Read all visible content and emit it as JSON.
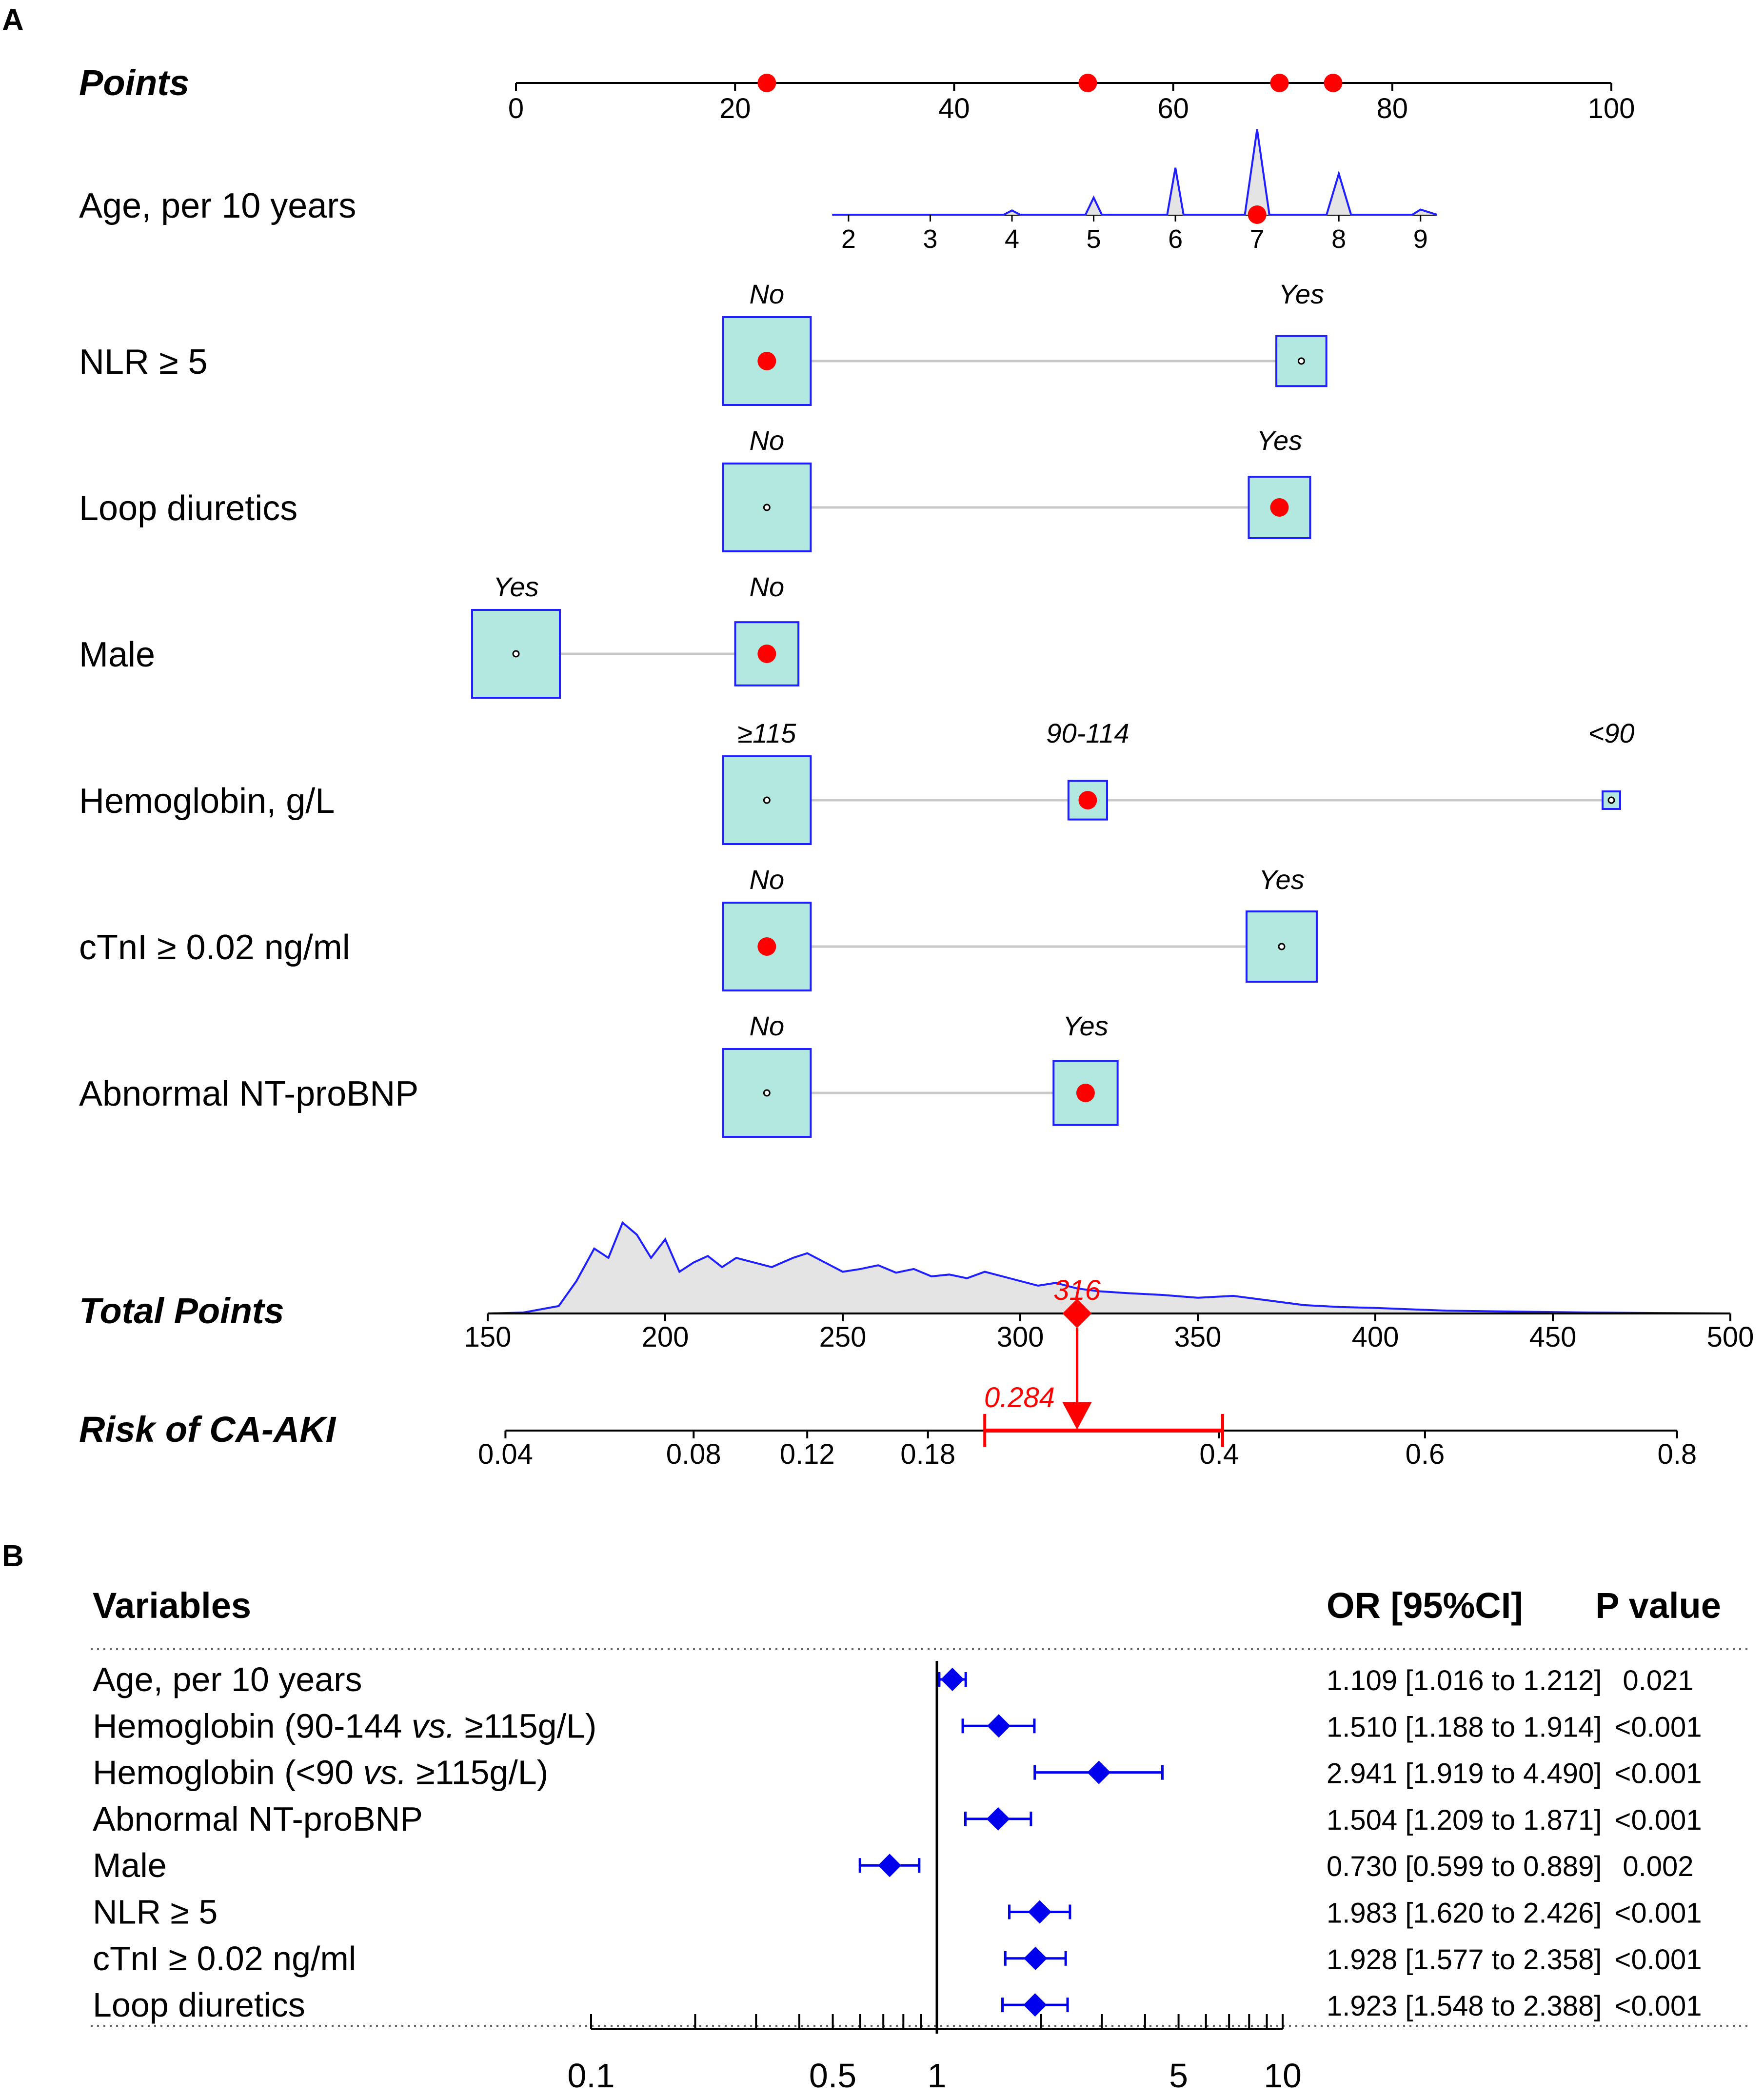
{
  "colors": {
    "axis": "#000000",
    "marker_red": "#ff0000",
    "box_fill": "#b3e8e0",
    "box_stroke": "#1f1fff",
    "density_line": "#1f1fff",
    "density_fill": "#e4e4e4",
    "connector": "#c8c8c8",
    "forest_blue": "#0000ee",
    "grid_dots": "#666666"
  },
  "chart_data": [
    {
      "panel": "A",
      "type": "nomogram",
      "points_axis": {
        "label": "Points",
        "range": [
          0,
          100
        ],
        "ticks": [
          0,
          20,
          40,
          60,
          80,
          100
        ],
        "selected_points": [
          22.9,
          52.2,
          69.7,
          74.6
        ]
      },
      "variables": [
        {
          "label": "Age, per 10 years",
          "kind": "continuous",
          "tick_values": [
            2,
            3,
            4,
            5,
            6,
            7,
            8,
            9
          ],
          "points_per_unit": 7.46,
          "zero_point_value": 1,
          "selected_value": 7,
          "density": [
            [
              1.8,
              0
            ],
            [
              3.9,
              0
            ],
            [
              4.0,
              0.05
            ],
            [
              4.1,
              0
            ],
            [
              4.9,
              0
            ],
            [
              5.0,
              0.2
            ],
            [
              5.1,
              0
            ],
            [
              5.9,
              0
            ],
            [
              6.0,
              0.55
            ],
            [
              6.1,
              0
            ],
            [
              6.85,
              0
            ],
            [
              7.0,
              1.0
            ],
            [
              7.15,
              0
            ],
            [
              7.85,
              0
            ],
            [
              8.0,
              0.48
            ],
            [
              8.15,
              0
            ],
            [
              8.9,
              0
            ],
            [
              9.0,
              0.06
            ],
            [
              9.2,
              0
            ]
          ]
        },
        {
          "label": "NLR ≥ 5",
          "kind": "categorical",
          "categories": [
            {
              "name": "No",
              "points": 22.9,
              "size": 1.0
            },
            {
              "name": "Yes",
              "points": 71.7,
              "size": 0.57
            }
          ],
          "selected": "No"
        },
        {
          "label": "Loop diuretics",
          "kind": "categorical",
          "categories": [
            {
              "name": "No",
              "points": 22.9,
              "size": 1.0
            },
            {
              "name": "Yes",
              "points": 69.7,
              "size": 0.7
            }
          ],
          "selected": "Yes"
        },
        {
          "label": "Male",
          "kind": "categorical",
          "categories": [
            {
              "name": "Yes",
              "points": 0,
              "size": 1.0
            },
            {
              "name": "No",
              "points": 22.9,
              "size": 0.72
            }
          ],
          "selected": "No"
        },
        {
          "label": "Hemoglobin, g/L",
          "kind": "categorical",
          "categories": [
            {
              "name": "≥115",
              "points": 22.9,
              "size": 1.0
            },
            {
              "name": "90-114",
              "points": 52.2,
              "size": 0.44
            },
            {
              "name": "<90",
              "points": 100,
              "size": 0.2
            }
          ],
          "selected": "90-114"
        },
        {
          "label": "cTnI ≥ 0.02 ng/ml",
          "kind": "categorical",
          "categories": [
            {
              "name": "No",
              "points": 22.9,
              "size": 1.0
            },
            {
              "name": "Yes",
              "points": 69.9,
              "size": 0.8
            }
          ],
          "selected": "No"
        },
        {
          "label": "Abnormal NT-proBNP",
          "kind": "categorical",
          "categories": [
            {
              "name": "No",
              "points": 22.9,
              "size": 1.0
            },
            {
              "name": "Yes",
              "points": 52.0,
              "size": 0.73
            }
          ],
          "selected": "Yes"
        }
      ],
      "total_points": {
        "label": "Total Points",
        "range": [
          150,
          500
        ],
        "ticks": [
          150,
          200,
          250,
          300,
          350,
          400,
          450,
          500
        ],
        "selected": 316,
        "selected_label": "316",
        "density": [
          [
            150,
            0
          ],
          [
            160,
            0.01
          ],
          [
            170,
            0.08
          ],
          [
            175,
            0.35
          ],
          [
            180,
            0.7
          ],
          [
            184,
            0.6
          ],
          [
            188,
            0.98
          ],
          [
            192,
            0.85
          ],
          [
            196,
            0.6
          ],
          [
            200,
            0.8
          ],
          [
            204,
            0.45
          ],
          [
            208,
            0.55
          ],
          [
            212,
            0.62
          ],
          [
            216,
            0.5
          ],
          [
            220,
            0.6
          ],
          [
            225,
            0.55
          ],
          [
            230,
            0.5
          ],
          [
            236,
            0.6
          ],
          [
            240,
            0.65
          ],
          [
            245,
            0.55
          ],
          [
            250,
            0.45
          ],
          [
            255,
            0.48
          ],
          [
            260,
            0.52
          ],
          [
            265,
            0.44
          ],
          [
            270,
            0.48
          ],
          [
            275,
            0.4
          ],
          [
            280,
            0.42
          ],
          [
            285,
            0.38
          ],
          [
            290,
            0.45
          ],
          [
            295,
            0.4
          ],
          [
            300,
            0.35
          ],
          [
            305,
            0.3
          ],
          [
            310,
            0.33
          ],
          [
            316,
            0.27
          ],
          [
            322,
            0.24
          ],
          [
            330,
            0.22
          ],
          [
            340,
            0.2
          ],
          [
            350,
            0.17
          ],
          [
            360,
            0.19
          ],
          [
            370,
            0.14
          ],
          [
            380,
            0.09
          ],
          [
            390,
            0.07
          ],
          [
            400,
            0.06
          ],
          [
            420,
            0.03
          ],
          [
            440,
            0.02
          ],
          [
            460,
            0.01
          ],
          [
            480,
            0.005
          ],
          [
            500,
            0
          ]
        ]
      },
      "risk_axis": {
        "label": "Risk of CA-AKI",
        "tick_values": [
          0.04,
          0.08,
          0.12,
          0.18,
          0.4,
          0.6,
          0.8
        ],
        "tick_labels": [
          "0.04",
          "0.08",
          "0.12",
          "0.18",
          "0.4",
          "0.6",
          "0.8"
        ],
        "tick_positions_total_points": [
          155,
          208,
          240,
          274,
          356,
          414,
          485
        ],
        "predicted": 0.284,
        "predicted_label": "0.284",
        "ci_total_points": [
          290,
          357
        ]
      }
    },
    {
      "panel": "B",
      "type": "forest",
      "headers": {
        "variable": "Variables",
        "estimate": "OR [95%CI]",
        "p": "P value"
      },
      "x_scale": "log",
      "x_range": [
        0.1,
        10
      ],
      "x_ticks": [
        0.1,
        0.5,
        1,
        5,
        10
      ],
      "x_tick_labels": [
        "0.1",
        "0.5",
        "1",
        "5",
        "10"
      ],
      "reference_line": 1,
      "rows": [
        {
          "variable": "Age, per 10 years",
          "or": 1.109,
          "lo": 1.016,
          "hi": 1.212,
          "or_text": "1.109 [1.016 to 1.212]",
          "p": "0.021"
        },
        {
          "variable_parts": [
            "Hemoglobin (90-144 ",
            "vs.",
            " ≥115g/L)"
          ],
          "or": 1.51,
          "lo": 1.188,
          "hi": 1.914,
          "or_text": "1.510 [1.188 to 1.914]",
          "p": "<0.001"
        },
        {
          "variable_parts": [
            "Hemoglobin (<90 ",
            "vs.",
            " ≥115g/L)"
          ],
          "or": 2.941,
          "lo": 1.919,
          "hi": 4.49,
          "or_text": "2.941 [1.919 to 4.490]",
          "p": "<0.001"
        },
        {
          "variable": "Abnormal NT-proBNP",
          "or": 1.504,
          "lo": 1.209,
          "hi": 1.871,
          "or_text": "1.504 [1.209 to 1.871]",
          "p": "<0.001"
        },
        {
          "variable": "Male",
          "or": 0.73,
          "lo": 0.599,
          "hi": 0.889,
          "or_text": "0.730 [0.599 to 0.889]",
          "p": "0.002"
        },
        {
          "variable": "NLR ≥ 5",
          "or": 1.983,
          "lo": 1.62,
          "hi": 2.426,
          "or_text": "1.983 [1.620 to 2.426]",
          "p": "<0.001"
        },
        {
          "variable": "cTnI ≥ 0.02 ng/ml",
          "or": 1.928,
          "lo": 1.577,
          "hi": 2.358,
          "or_text": "1.928 [1.577 to 2.358]",
          "p": "<0.001"
        },
        {
          "variable": "Loop diuretics",
          "or": 1.923,
          "lo": 1.548,
          "hi": 2.388,
          "or_text": "1.923 [1.548 to 2.388]",
          "p": "<0.001"
        }
      ]
    }
  ],
  "panels": {
    "a_label": "A",
    "b_label": "B"
  }
}
